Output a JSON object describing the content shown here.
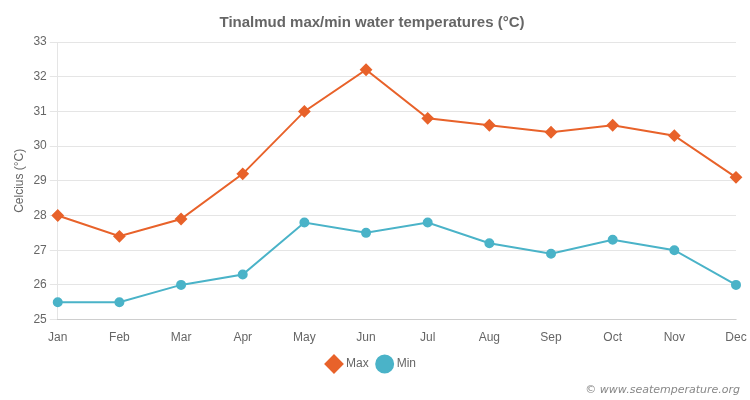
{
  "chart_data": {
    "type": "line",
    "title": "Tinalmud max/min water temperatures (°C)",
    "ylabel": "Celcius (°C)",
    "categories": [
      "Jan",
      "Feb",
      "Mar",
      "Apr",
      "May",
      "Jun",
      "Jul",
      "Aug",
      "Sep",
      "Oct",
      "Nov",
      "Dec"
    ],
    "series": [
      {
        "name": "Max",
        "color": "#e8622a",
        "marker": "diamond",
        "values": [
          28.0,
          27.4,
          27.9,
          29.2,
          31.0,
          32.2,
          30.8,
          30.6,
          30.4,
          30.6,
          30.3,
          29.1
        ]
      },
      {
        "name": "Min",
        "color": "#4ab3c8",
        "marker": "circle",
        "values": [
          25.5,
          25.5,
          26.0,
          26.3,
          27.8,
          27.5,
          27.8,
          27.2,
          26.9,
          27.3,
          27.0,
          26.0
        ]
      }
    ],
    "ylim": [
      25,
      33
    ],
    "yticks": [
      25,
      26,
      27,
      28,
      29,
      30,
      31,
      32,
      33
    ],
    "grid": true,
    "legend": "bottom",
    "annotations": [
      "© www.seatemperature.org"
    ]
  }
}
